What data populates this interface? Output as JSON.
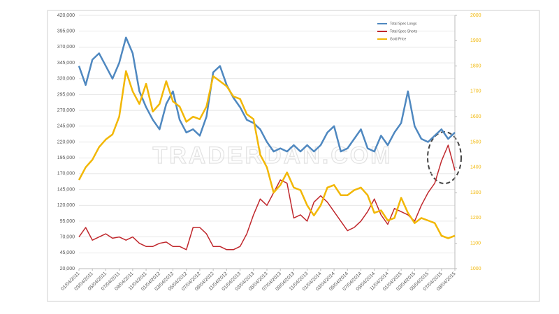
{
  "chart_data": {
    "type": "line",
    "annotations": [
      "TRADERDAN.COM"
    ],
    "categories": [
      "01/04/2011",
      null,
      "03/04/2011",
      null,
      "05/04/2011",
      null,
      "07/04/2011",
      null,
      "09/04/2011",
      null,
      "11/04/2011",
      null,
      "01/04/2012",
      null,
      "03/04/2012",
      null,
      "05/04/2012",
      null,
      "07/04/2012",
      null,
      "09/04/2012",
      null,
      "11/04/2012",
      null,
      "01/04/2013",
      null,
      "03/04/2013",
      null,
      "05/04/2013",
      null,
      "07/04/2013",
      null,
      "09/04/2013",
      null,
      "11/04/2013",
      null,
      "01/04/2014",
      null,
      "03/04/2014",
      null,
      "05/04/2014",
      null,
      "07/04/2014",
      null,
      "09/04/2014",
      null,
      "11/04/2014",
      null,
      "01/04/2015",
      null,
      "03/04/2015",
      null,
      "05/04/2015",
      null,
      "07/04/2015",
      null,
      "09/04/2015"
    ],
    "series": [
      {
        "name": "Total Spec Longs",
        "color": "#4f88c0",
        "values": [
          340000,
          310000,
          350000,
          360000,
          340000,
          320000,
          345000,
          385000,
          360000,
          300000,
          275000,
          255000,
          240000,
          280000,
          300000,
          255000,
          235000,
          240000,
          230000,
          260000,
          330000,
          340000,
          310000,
          290000,
          275000,
          255000,
          250000,
          240000,
          220000,
          205000,
          210000,
          205000,
          215000,
          205000,
          215000,
          205000,
          215000,
          235000,
          245000,
          205000,
          210000,
          225000,
          240000,
          210000,
          205000,
          230000,
          215000,
          235000,
          250000,
          300000,
          245000,
          225000,
          220000,
          230000,
          240000,
          225000,
          235000
        ]
      },
      {
        "name": "Total Spec Shorts",
        "color": "#c0282d",
        "values": [
          70000,
          85000,
          65000,
          70000,
          75000,
          68000,
          70000,
          65000,
          70000,
          60000,
          55000,
          55000,
          60000,
          62000,
          55000,
          55000,
          50000,
          85000,
          85000,
          75000,
          55000,
          55000,
          50000,
          50000,
          55000,
          75000,
          105000,
          130000,
          120000,
          140000,
          160000,
          155000,
          100000,
          105000,
          95000,
          125000,
          135000,
          125000,
          110000,
          95000,
          80000,
          85000,
          95000,
          110000,
          130000,
          105000,
          90000,
          115000,
          110000,
          105000,
          95000,
          120000,
          140000,
          155000,
          190000,
          215000,
          175000
        ]
      },
      {
        "name": "Gold Price",
        "color": "#f2b705",
        "axis": "y2",
        "values": [
          1350,
          1400,
          1430,
          1480,
          1510,
          1530,
          1600,
          1780,
          1700,
          1650,
          1730,
          1620,
          1650,
          1740,
          1660,
          1640,
          1580,
          1600,
          1590,
          1640,
          1760,
          1740,
          1720,
          1680,
          1670,
          1610,
          1590,
          1450,
          1400,
          1300,
          1330,
          1380,
          1320,
          1310,
          1250,
          1210,
          1250,
          1320,
          1330,
          1290,
          1290,
          1310,
          1320,
          1290,
          1220,
          1230,
          1190,
          1200,
          1280,
          1220,
          1180,
          1200,
          1190,
          1180,
          1130,
          1120,
          1130
        ]
      }
    ],
    "ylim": [
      20000,
      420000
    ],
    "yticks": [
      {
        "value": 20000,
        "label": "20,000"
      },
      {
        "value": 45000,
        "label": "45,000"
      },
      {
        "value": 70000,
        "label": "70,000"
      },
      {
        "value": 95000,
        "label": "95,000"
      },
      {
        "value": 120000,
        "label": "120,000"
      },
      {
        "value": 145000,
        "label": "145,000"
      },
      {
        "value": 170000,
        "label": "170,000"
      },
      {
        "value": 195000,
        "label": "195,000"
      },
      {
        "value": 220000,
        "label": "220,000"
      },
      {
        "value": 245000,
        "label": "245,000"
      },
      {
        "value": 270000,
        "label": "270,000"
      },
      {
        "value": 295000,
        "label": "295,000"
      },
      {
        "value": 320000,
        "label": "320,000"
      },
      {
        "value": 345000,
        "label": "345,000"
      },
      {
        "value": 370000,
        "label": "370,000"
      },
      {
        "value": 395000,
        "label": "395,000"
      },
      {
        "value": 420000,
        "label": "420,000"
      }
    ],
    "y2lim": [
      1000,
      2000
    ],
    "y2ticks": [
      1000,
      1100,
      1200,
      1300,
      1400,
      1500,
      1600,
      1700,
      1800,
      1900,
      2000
    ],
    "y2color": "#f2b705",
    "grid": true,
    "legend": "upper right"
  }
}
